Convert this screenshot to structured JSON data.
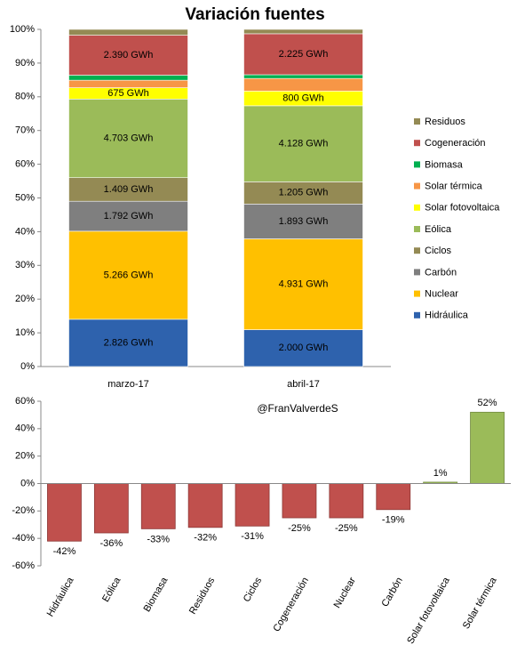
{
  "chart_data": [
    {
      "type": "stacked_bar_100",
      "title": "Variación fuentes",
      "categories": [
        "marzo-17",
        "abril-17"
      ],
      "ylim": [
        0,
        100
      ],
      "yticks": [
        {
          "value": 0,
          "label": "0%"
        },
        {
          "value": 10,
          "label": "10%"
        },
        {
          "value": 20,
          "label": "20%"
        },
        {
          "value": 30,
          "label": "30%"
        },
        {
          "value": 40,
          "label": "40%"
        },
        {
          "value": 50,
          "label": "50%"
        },
        {
          "value": 60,
          "label": "60%"
        },
        {
          "value": 70,
          "label": "70%"
        },
        {
          "value": 80,
          "label": "80%"
        },
        {
          "value": 90,
          "label": "90%"
        },
        {
          "value": 100,
          "label": "100%"
        }
      ],
      "grid": false,
      "legend": "right",
      "series": [
        {
          "name": "Hidráulica",
          "color": "#2e62ad",
          "values": [
            2826,
            2000
          ],
          "value_labels": [
            "2.826 GWh",
            "2.000 GWh"
          ]
        },
        {
          "name": "Nuclear",
          "color": "#ffc000",
          "values": [
            5266,
            4931
          ],
          "value_labels": [
            "5.266 GWh",
            "4.931 GWh"
          ]
        },
        {
          "name": "Carbón",
          "color": "#7f7f7f",
          "values": [
            1792,
            1893
          ],
          "value_labels": [
            "1.792 GWh",
            "1.893 GWh"
          ]
        },
        {
          "name": "Ciclos",
          "color": "#948a54",
          "values": [
            1409,
            1205
          ],
          "value_labels": [
            "1.409 GWh",
            "1.205 GWh"
          ]
        },
        {
          "name": "Eólica",
          "color": "#9bbb59",
          "values": [
            4703,
            4128
          ],
          "value_labels": [
            "4.703 GWh",
            "4.128 GWh"
          ]
        },
        {
          "name": "Solar fotovoltaica",
          "color": "#ffff00",
          "values": [
            675,
            800
          ],
          "value_labels": [
            "675 GWh",
            "800 GWh"
          ]
        },
        {
          "name": "Solar térmica",
          "color": "#f79646",
          "values": [
            450,
            684
          ]
        },
        {
          "name": "Biomasa",
          "color": "#00b050",
          "values": [
            300,
            201
          ]
        },
        {
          "name": "Cogeneración",
          "color": "#c0504d",
          "values": [
            2390,
            2225
          ],
          "value_labels": [
            "2.390 GWh",
            "2.225 GWh"
          ]
        },
        {
          "name": "Residuos",
          "color": "#948a54",
          "values": [
            350,
            238
          ]
        }
      ]
    },
    {
      "type": "bar",
      "annotation": "@FranValverdeS",
      "categories": [
        "Hidráulica",
        "Eólica",
        "Biomasa",
        "Residuos",
        "Ciclos",
        "Cogeneración",
        "Nuclear",
        "Carbón",
        "Solar fotovoltaica",
        "Solar térmica"
      ],
      "values": [
        -42,
        -36,
        -33,
        -32,
        -31,
        -25,
        -25,
        -19,
        1,
        52
      ],
      "value_labels": [
        "-42%",
        "-36%",
        "-33%",
        "-32%",
        "-31%",
        "-25%",
        "-25%",
        "-19%",
        "1%",
        "52%"
      ],
      "negative_color": "#c0504d",
      "color": "#9bbb59",
      "ylim": [
        -60,
        60
      ],
      "yticks": [
        {
          "value": -60,
          "label": "-60%"
        },
        {
          "value": -40,
          "label": "-40%"
        },
        {
          "value": -20,
          "label": "-20%"
        },
        {
          "value": 0,
          "label": "0%"
        },
        {
          "value": 20,
          "label": "20%"
        },
        {
          "value": 40,
          "label": "40%"
        },
        {
          "value": 60,
          "label": "60%"
        }
      ]
    }
  ]
}
